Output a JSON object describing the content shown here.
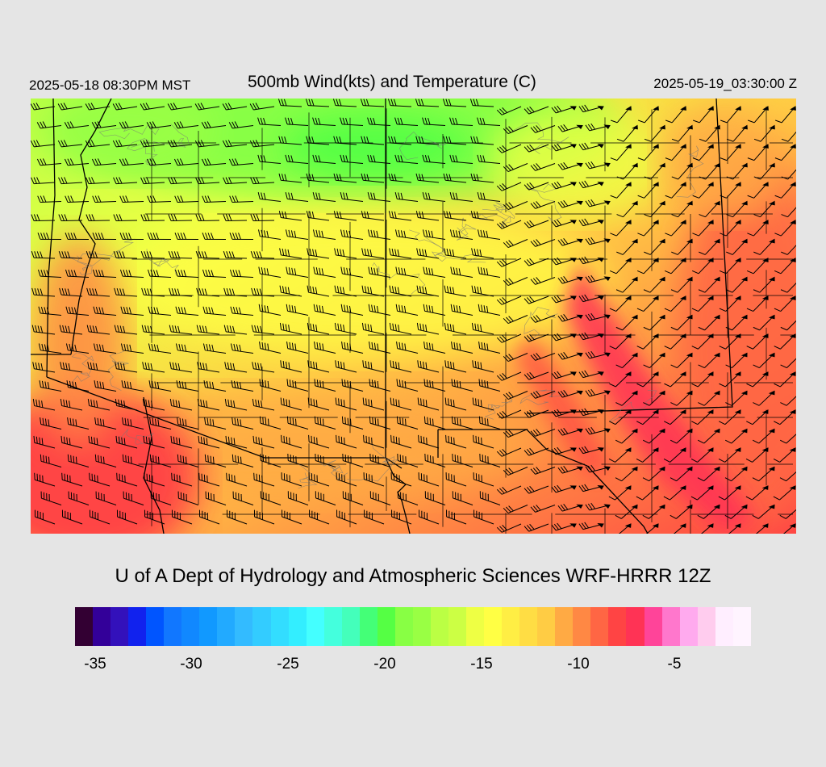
{
  "header": {
    "local_time": "2025-05-18 08:30PM MST",
    "title": "500mb Wind(kts) and Temperature (C)",
    "utc_time": "2025-05-19_03:30:00 Z"
  },
  "credit": "U of A Dept of Hydrology and Atmospheric Sciences WRF-HRRR 12Z",
  "colorbar": {
    "colors": [
      "#330033",
      "#330099",
      "#3311bb",
      "#1122ee",
      "#0055ff",
      "#1177ff",
      "#1188ff",
      "#1199ff",
      "#22aaff",
      "#33bbff",
      "#33ccff",
      "#33ddff",
      "#33eeff",
      "#44ffff",
      "#44ffdd",
      "#44ffbb",
      "#44ff77",
      "#55ff44",
      "#88ff44",
      "#99ff44",
      "#bbff44",
      "#ccff44",
      "#eeff44",
      "#ffff44",
      "#ffee44",
      "#ffdd44",
      "#ffcc44",
      "#ffaa44",
      "#ff8844",
      "#ff6644",
      "#ff4444",
      "#ff3355",
      "#ff4499",
      "#ff77cc",
      "#ffaaee",
      "#ffccee",
      "#ffeeff",
      "#fff4ff"
    ],
    "tick_labels": [
      "-35",
      "-30",
      "-25",
      "-20",
      "-15",
      "-10",
      "-5"
    ]
  },
  "map": {
    "field": "500mb temperature (C) with wind barbs (kts)",
    "temp_range_shown": [
      -22,
      -6
    ]
  }
}
